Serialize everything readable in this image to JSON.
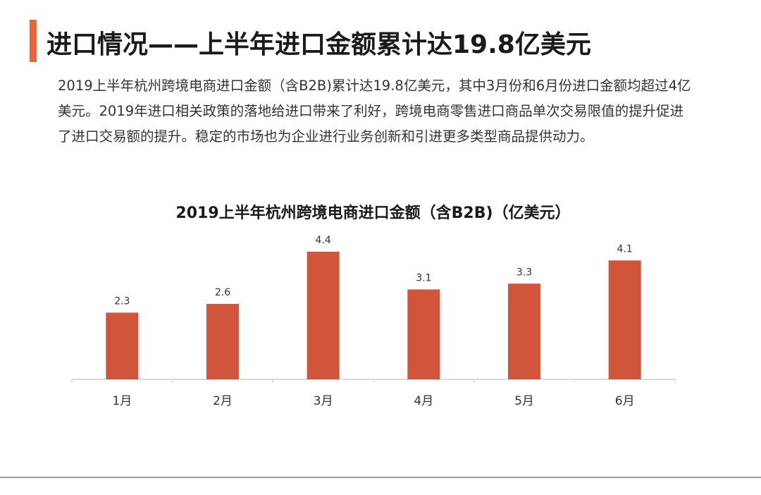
{
  "header": {
    "title": "进口情况——上半年进口金额累计达19.8亿美元"
  },
  "body_text": "2019上半年杭州跨境电商进口金额（含B2B)累计达19.8亿美元，其中3月份和6月份进口金额均超过4亿美元。2019年进口相关政策的落地给进口带来了利好，跨境电商零售进口商品单次交易限值的提升促进了进口交易额的提升。稳定的市场也为企业进行业务创新和引进更多类型商品提供动力。",
  "colors": {
    "accent": "#E8643A",
    "bar": "#D1553A",
    "axis": "#d0d0d0"
  },
  "chart_data": {
    "type": "bar",
    "title": "2019上半年杭州跨境电商进口金额（含B2B)（亿美元）",
    "categories": [
      "1月",
      "2月",
      "3月",
      "4月",
      "5月",
      "6月"
    ],
    "values": [
      2.3,
      2.6,
      4.4,
      3.1,
      3.3,
      4.1
    ],
    "data_labels": [
      "2.3",
      "2.6",
      "4.4",
      "3.1",
      "3.3",
      "4.1"
    ],
    "xlabel": "",
    "ylabel": "",
    "ylim": [
      0,
      4.4
    ],
    "grid": false,
    "legend": "none"
  }
}
